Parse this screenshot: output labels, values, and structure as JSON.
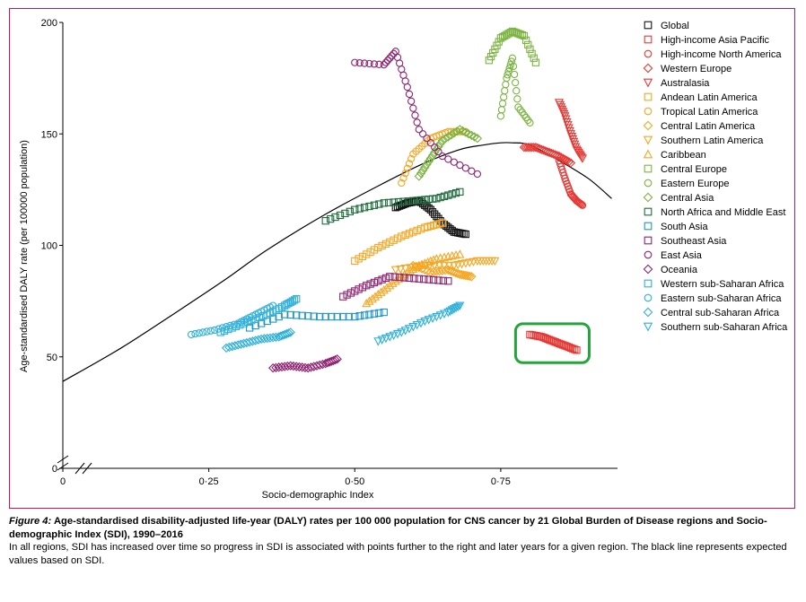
{
  "chart_data": {
    "type": "scatter",
    "xlabel": "Socio-demographic Index",
    "ylabel": "Age-standardised DALY rate (per 100000 population)",
    "xlim": [
      0,
      0.95
    ],
    "ylim": [
      0,
      200
    ],
    "x_ticks": [
      0,
      0.25,
      0.5,
      0.75
    ],
    "x_tick_labels": [
      "0",
      "0·25",
      "0·50",
      "0·75"
    ],
    "y_ticks": [
      0,
      50,
      100,
      150,
      200
    ],
    "y_tick_labels": [
      "0",
      "50",
      "100",
      "150",
      "200"
    ],
    "axis_break": true,
    "legend_position": "right",
    "expected_curve": {
      "name": "Expected values based on SDI",
      "x": [
        0,
        0.1,
        0.2,
        0.28,
        0.35,
        0.45,
        0.55,
        0.62,
        0.68,
        0.72,
        0.75,
        0.77,
        0.8,
        0.85,
        0.9,
        0.94
      ],
      "y": [
        39,
        54,
        71,
        85,
        98,
        114,
        128,
        137,
        143,
        145,
        146,
        146,
        145,
        138,
        130,
        121
      ]
    },
    "series": [
      {
        "name": "Global",
        "color": "#111111",
        "marker": "square",
        "x": [
          0.57,
          0.59,
          0.61,
          0.63,
          0.65,
          0.67,
          0.69
        ],
        "y": [
          117,
          119,
          120,
          116,
          110,
          106,
          105
        ]
      },
      {
        "name": "High-income Asia Pacific",
        "color": "#e53935",
        "marker": "square",
        "x": [
          0.8,
          0.82,
          0.84,
          0.86,
          0.88
        ],
        "y": [
          60,
          59,
          57,
          55,
          53
        ]
      },
      {
        "name": "High-income North America",
        "color": "#e53935",
        "marker": "circle",
        "x": [
          0.85,
          0.86,
          0.87,
          0.88,
          0.89
        ],
        "y": [
          138,
          130,
          123,
          120,
          118
        ]
      },
      {
        "name": "Western Europe",
        "color": "#e53935",
        "marker": "diamond",
        "x": [
          0.79,
          0.81,
          0.83,
          0.85,
          0.87
        ],
        "y": [
          144,
          144,
          142,
          140,
          137
        ]
      },
      {
        "name": "Australasia",
        "color": "#e53935",
        "marker": "triangle-down",
        "x": [
          0.85,
          0.86,
          0.87,
          0.88,
          0.89
        ],
        "y": [
          164,
          158,
          150,
          143,
          139
        ]
      },
      {
        "name": "Andean Latin America",
        "color": "#f5a623",
        "marker": "square",
        "x": [
          0.5,
          0.54,
          0.58,
          0.62,
          0.65
        ],
        "y": [
          93,
          99,
          104,
          108,
          110
        ]
      },
      {
        "name": "Tropical Latin America",
        "color": "#f5a623",
        "marker": "circle",
        "x": [
          0.58,
          0.6,
          0.63,
          0.66,
          0.69
        ],
        "y": [
          128,
          141,
          148,
          151,
          151
        ]
      },
      {
        "name": "Central Latin America",
        "color": "#f5a623",
        "marker": "diamond",
        "x": [
          0.6,
          0.63,
          0.66,
          0.68,
          0.7
        ],
        "y": [
          91,
          88,
          89,
          87,
          86
        ]
      },
      {
        "name": "Southern Latin America",
        "color": "#f5a623",
        "marker": "triangle-down",
        "x": [
          0.57,
          0.62,
          0.67,
          0.71,
          0.74
        ],
        "y": [
          89,
          91,
          91,
          93,
          93
        ]
      },
      {
        "name": "Caribbean",
        "color": "#f5a623",
        "marker": "triangle-up",
        "x": [
          0.52,
          0.55,
          0.58,
          0.61,
          0.64,
          0.68
        ],
        "y": [
          74,
          80,
          86,
          91,
          94,
          96
        ]
      },
      {
        "name": "Central Europe",
        "color": "#7cb342",
        "marker": "square",
        "x": [
          0.73,
          0.75,
          0.77,
          0.79,
          0.81
        ],
        "y": [
          183,
          193,
          196,
          194,
          182
        ]
      },
      {
        "name": "Eastern Europe",
        "color": "#7cb342",
        "marker": "circle",
        "x": [
          0.75,
          0.76,
          0.77,
          0.78,
          0.8
        ],
        "y": [
          158,
          175,
          184,
          162,
          155
        ]
      },
      {
        "name": "Central Asia",
        "color": "#7cb342",
        "marker": "diamond",
        "x": [
          0.61,
          0.63,
          0.65,
          0.68,
          0.71
        ],
        "y": [
          131,
          139,
          147,
          152,
          148
        ]
      },
      {
        "name": "North Africa and Middle East",
        "color": "#1e6b3c",
        "marker": "square",
        "x": [
          0.45,
          0.5,
          0.55,
          0.6,
          0.64,
          0.68
        ],
        "y": [
          111,
          116,
          119,
          120,
          121,
          124
        ]
      },
      {
        "name": "South Asia",
        "color": "#2196c9",
        "marker": "square",
        "x": [
          0.32,
          0.38,
          0.44,
          0.5,
          0.55
        ],
        "y": [
          63,
          69,
          68,
          68,
          70
        ]
      },
      {
        "name": "Southeast Asia",
        "color": "#8e2472",
        "marker": "square",
        "x": [
          0.48,
          0.52,
          0.56,
          0.61,
          0.66
        ],
        "y": [
          77,
          82,
          86,
          85,
          84
        ]
      },
      {
        "name": "East Asia",
        "color": "#8e2472",
        "marker": "circle",
        "x": [
          0.5,
          0.55,
          0.57,
          0.59,
          0.61,
          0.65,
          0.71
        ],
        "y": [
          182,
          181,
          187,
          171,
          152,
          140,
          132
        ]
      },
      {
        "name": "Oceania",
        "color": "#8e2472",
        "marker": "diamond",
        "x": [
          0.36,
          0.39,
          0.42,
          0.45,
          0.47
        ],
        "y": [
          45,
          46,
          45,
          47,
          49
        ]
      },
      {
        "name": "Western sub-Saharan Africa",
        "color": "#2fb0d9",
        "marker": "square",
        "x": [
          0.27,
          0.31,
          0.35,
          0.38,
          0.4
        ],
        "y": [
          61,
          65,
          69,
          73,
          76
        ]
      },
      {
        "name": "Eastern sub-Saharan Africa",
        "color": "#2fb0d9",
        "marker": "circle",
        "x": [
          0.22,
          0.26,
          0.3,
          0.33,
          0.36
        ],
        "y": [
          60,
          62,
          65,
          69,
          73
        ]
      },
      {
        "name": "Central sub-Saharan Africa",
        "color": "#2fb0d9",
        "marker": "diamond",
        "x": [
          0.28,
          0.31,
          0.34,
          0.37,
          0.39
        ],
        "y": [
          54,
          56,
          58,
          59,
          61
        ]
      },
      {
        "name": "Southern sub-Saharan Africa",
        "color": "#2fb0d9",
        "marker": "triangle-down",
        "x": [
          0.54,
          0.58,
          0.62,
          0.66,
          0.68
        ],
        "y": [
          57,
          61,
          66,
          70,
          73
        ]
      }
    ]
  },
  "highlight_color": "#22a63a",
  "caption": {
    "figure_label": "Figure 4:",
    "title": " Age-standardised disability-adjusted life-year (DALY) rates per 100 000 population for CNS cancer by 21 Global Burden of Disease regions and Socio-demographic Index (SDI), 1990–2016",
    "body": "In all regions, SDI has increased over time so progress in SDI is associated with points further to the right and later years for a given region. The black line represents expected values based on SDI."
  }
}
